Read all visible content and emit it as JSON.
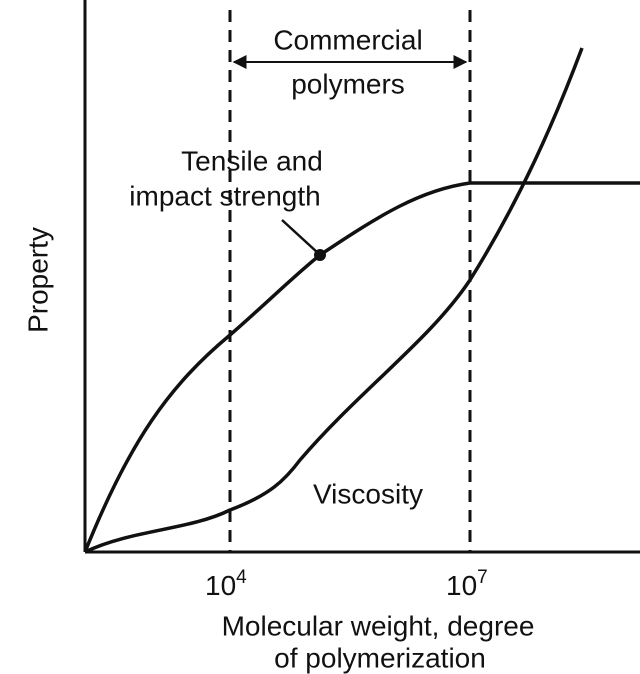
{
  "annotations": {
    "range_label": [
      "Commercial",
      "polymers"
    ],
    "tensile_label": [
      "Tensile and",
      "impact strength"
    ],
    "viscosity_label": "Viscosity"
  },
  "y_axis": {
    "label": "Property"
  },
  "x_axis": {
    "ticks": [
      {
        "base": "10",
        "exponent": "4"
      },
      {
        "base": "10",
        "exponent": "7"
      }
    ],
    "label": [
      "Molecular weight, degree",
      "of polymerization"
    ]
  }
}
